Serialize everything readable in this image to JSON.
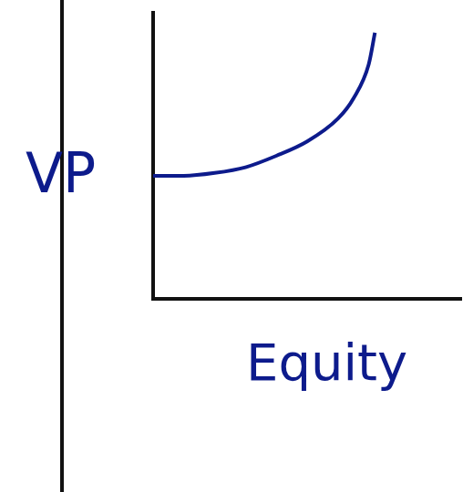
{
  "chart_data": {
    "type": "line",
    "x_label": "Equity",
    "y_label": "VP",
    "x": [
      0,
      1,
      2,
      3,
      4,
      5,
      6,
      6.5,
      7,
      7.2
    ],
    "values": [
      4.3,
      4.3,
      4.4,
      4.6,
      5.0,
      5.5,
      6.3,
      7.0,
      8.2,
      9.3
    ],
    "color": "#0d1b8c",
    "xlim": [
      0,
      10
    ],
    "ylim": [
      0,
      10
    ],
    "grid": false,
    "tick_labels": false
  }
}
